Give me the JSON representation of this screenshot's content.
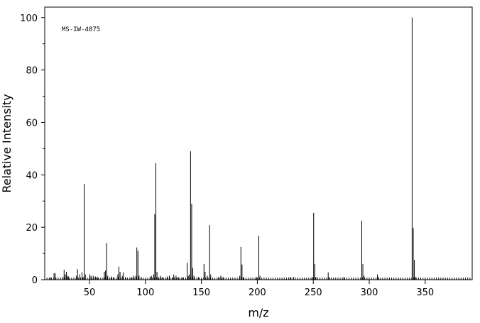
{
  "chart_data": {
    "type": "bar",
    "title": "",
    "annotation": "MS-IW-4875",
    "xlabel": "m/z",
    "ylabel": "Relative Intensity",
    "xlim": [
      10,
      392
    ],
    "ylim": [
      0,
      104
    ],
    "x_ticks": [
      50,
      100,
      150,
      200,
      250,
      300,
      350
    ],
    "y_ticks": [
      0,
      20,
      40,
      60,
      80,
      100
    ],
    "grid": false,
    "legend": "none",
    "bar_color": "#000000",
    "peaks": [
      {
        "mz": 15,
        "intensity": 0.8
      },
      {
        "mz": 18,
        "intensity": 2.5
      },
      {
        "mz": 19,
        "intensity": 2.5
      },
      {
        "mz": 26,
        "intensity": 1.0
      },
      {
        "mz": 27,
        "intensity": 3.8
      },
      {
        "mz": 28,
        "intensity": 2.0
      },
      {
        "mz": 29,
        "intensity": 3.0
      },
      {
        "mz": 30,
        "intensity": 1.5
      },
      {
        "mz": 31,
        "intensity": 1.2
      },
      {
        "mz": 38,
        "intensity": 1.5
      },
      {
        "mz": 39,
        "intensity": 4.0
      },
      {
        "mz": 41,
        "intensity": 2.0
      },
      {
        "mz": 43,
        "intensity": 2.8
      },
      {
        "mz": 44,
        "intensity": 1.0
      },
      {
        "mz": 45,
        "intensity": 36.5
      },
      {
        "mz": 46,
        "intensity": 2.0
      },
      {
        "mz": 50,
        "intensity": 2.0
      },
      {
        "mz": 51,
        "intensity": 1.5
      },
      {
        "mz": 53,
        "intensity": 1.5
      },
      {
        "mz": 55,
        "intensity": 1.2
      },
      {
        "mz": 57,
        "intensity": 1.0
      },
      {
        "mz": 63,
        "intensity": 3.0
      },
      {
        "mz": 64,
        "intensity": 3.5
      },
      {
        "mz": 65,
        "intensity": 14.0
      },
      {
        "mz": 66,
        "intensity": 1.5
      },
      {
        "mz": 69,
        "intensity": 1.2
      },
      {
        "mz": 71,
        "intensity": 1.0
      },
      {
        "mz": 75,
        "intensity": 2.0
      },
      {
        "mz": 76,
        "intensity": 5.0
      },
      {
        "mz": 77,
        "intensity": 3.0
      },
      {
        "mz": 79,
        "intensity": 1.5
      },
      {
        "mz": 80,
        "intensity": 2.8
      },
      {
        "mz": 82,
        "intensity": 1.0
      },
      {
        "mz": 87,
        "intensity": 1.0
      },
      {
        "mz": 89,
        "intensity": 1.5
      },
      {
        "mz": 91,
        "intensity": 1.5
      },
      {
        "mz": 92,
        "intensity": 12.3
      },
      {
        "mz": 93,
        "intensity": 11.0
      },
      {
        "mz": 94,
        "intensity": 1.5
      },
      {
        "mz": 96,
        "intensity": 1.0
      },
      {
        "mz": 104,
        "intensity": 1.0
      },
      {
        "mz": 105,
        "intensity": 1.5
      },
      {
        "mz": 107,
        "intensity": 2.0
      },
      {
        "mz": 108,
        "intensity": 25.0
      },
      {
        "mz": 109,
        "intensity": 44.5
      },
      {
        "mz": 110,
        "intensity": 3.0
      },
      {
        "mz": 111,
        "intensity": 1.0
      },
      {
        "mz": 113,
        "intensity": 1.5
      },
      {
        "mz": 115,
        "intensity": 1.0
      },
      {
        "mz": 119,
        "intensity": 1.2
      },
      {
        "mz": 121,
        "intensity": 1.5
      },
      {
        "mz": 124,
        "intensity": 1.0
      },
      {
        "mz": 125,
        "intensity": 2.0
      },
      {
        "mz": 127,
        "intensity": 1.5
      },
      {
        "mz": 129,
        "intensity": 1.0
      },
      {
        "mz": 133,
        "intensity": 1.0
      },
      {
        "mz": 137,
        "intensity": 6.5
      },
      {
        "mz": 138,
        "intensity": 1.5
      },
      {
        "mz": 139,
        "intensity": 2.0
      },
      {
        "mz": 140,
        "intensity": 49.0
      },
      {
        "mz": 141,
        "intensity": 29.0
      },
      {
        "mz": 142,
        "intensity": 4.5
      },
      {
        "mz": 143,
        "intensity": 1.5
      },
      {
        "mz": 147,
        "intensity": 1.0
      },
      {
        "mz": 152,
        "intensity": 6.0
      },
      {
        "mz": 153,
        "intensity": 3.0
      },
      {
        "mz": 155,
        "intensity": 1.5
      },
      {
        "mz": 157,
        "intensity": 20.8
      },
      {
        "mz": 158,
        "intensity": 2.0
      },
      {
        "mz": 165,
        "intensity": 1.0
      },
      {
        "mz": 167,
        "intensity": 1.5
      },
      {
        "mz": 169,
        "intensity": 1.0
      },
      {
        "mz": 184,
        "intensity": 1.5
      },
      {
        "mz": 185,
        "intensity": 12.5
      },
      {
        "mz": 186,
        "intensity": 5.8
      },
      {
        "mz": 187,
        "intensity": 1.0
      },
      {
        "mz": 199,
        "intensity": 1.0
      },
      {
        "mz": 201,
        "intensity": 16.8
      },
      {
        "mz": 202,
        "intensity": 1.5
      },
      {
        "mz": 229,
        "intensity": 1.0
      },
      {
        "mz": 232,
        "intensity": 1.0
      },
      {
        "mz": 249,
        "intensity": 1.0
      },
      {
        "mz": 250,
        "intensity": 25.5
      },
      {
        "mz": 251,
        "intensity": 6.0
      },
      {
        "mz": 252,
        "intensity": 1.0
      },
      {
        "mz": 263,
        "intensity": 2.8
      },
      {
        "mz": 264,
        "intensity": 1.0
      },
      {
        "mz": 277,
        "intensity": 1.0
      },
      {
        "mz": 293,
        "intensity": 22.5
      },
      {
        "mz": 294,
        "intensity": 6.0
      },
      {
        "mz": 295,
        "intensity": 1.5
      },
      {
        "mz": 307,
        "intensity": 2.0
      },
      {
        "mz": 308,
        "intensity": 1.0
      },
      {
        "mz": 338,
        "intensity": 100.0
      },
      {
        "mz": 339,
        "intensity": 19.8
      },
      {
        "mz": 340,
        "intensity": 7.5
      },
      {
        "mz": 341,
        "intensity": 1.0
      }
    ]
  }
}
